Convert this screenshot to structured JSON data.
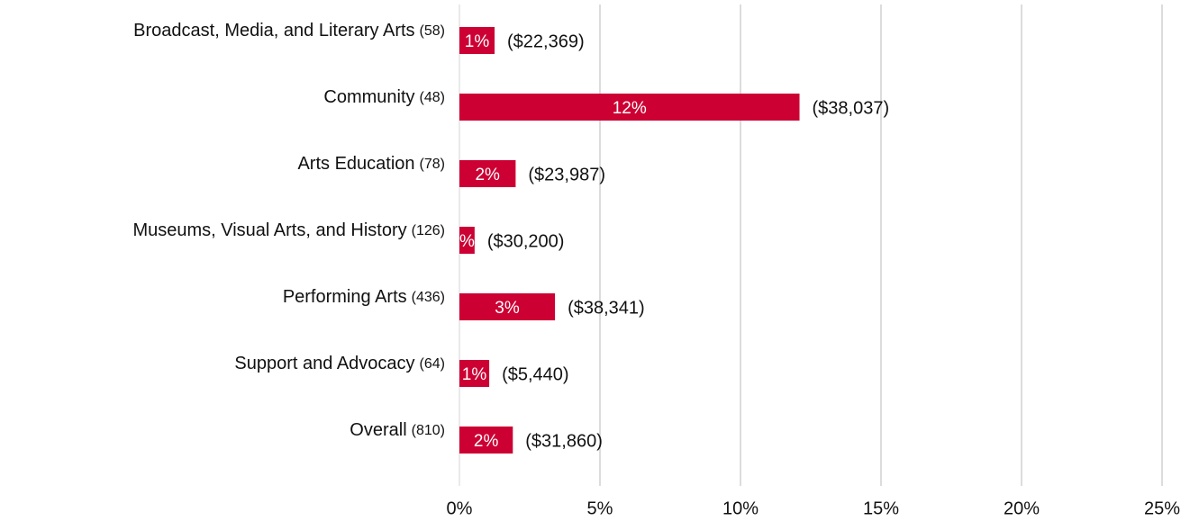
{
  "chart_data": {
    "type": "bar",
    "orientation": "horizontal",
    "categories": [
      "Broadcast, Media, and Literary Arts",
      "Community",
      "Arts Education",
      "Museums, Visual Arts, and History",
      "Performing Arts",
      "Support and Advocacy",
      "Overall"
    ],
    "counts": [
      "(58)",
      "(48)",
      "(78)",
      "(126)",
      "(436)",
      "(64)",
      "(810)"
    ],
    "values": [
      1.25,
      12.1,
      2.0,
      0.54,
      3.4,
      1.06,
      1.9
    ],
    "value_labels": [
      "1%",
      "12%",
      "2%",
      "%",
      "3%",
      "1%",
      "2%"
    ],
    "amounts": [
      "($22,369)",
      "($38,037)",
      "($23,987)",
      "($30,200)",
      "($38,341)",
      "($5,440)",
      "($31,860)"
    ],
    "color": "#cc0033",
    "xlim": [
      0,
      25
    ],
    "xticks": [
      {
        "value": 0,
        "label": "0%"
      },
      {
        "value": 5,
        "label": "5%"
      },
      {
        "value": 10,
        "label": "10%"
      },
      {
        "value": 15,
        "label": "15%"
      },
      {
        "value": 20,
        "label": "20%"
      },
      {
        "value": 25,
        "label": "25%"
      }
    ],
    "grid": true
  }
}
